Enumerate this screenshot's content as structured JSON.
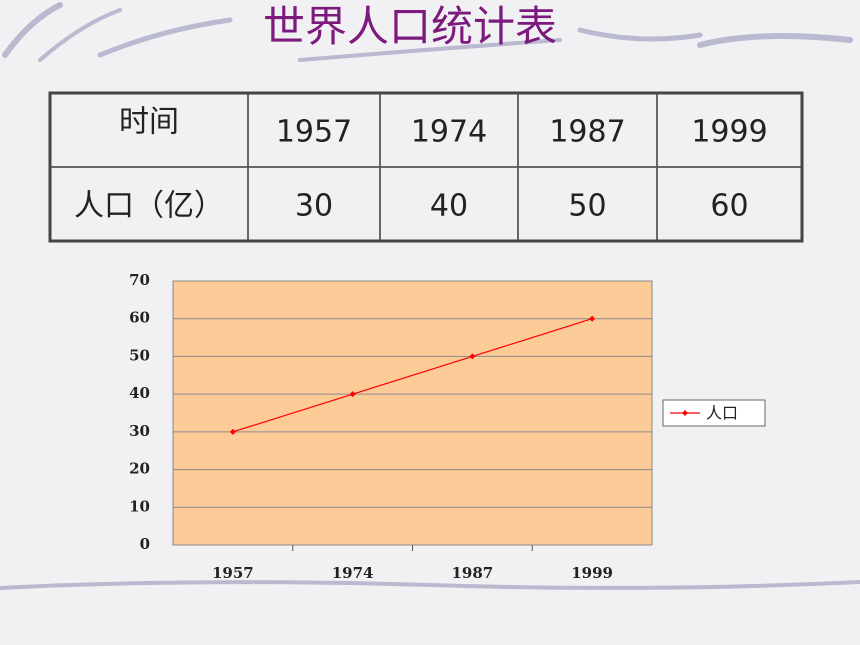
{
  "title": "世界人口统计表",
  "table": {
    "rows": [
      [
        "时间",
        "1957",
        "1974",
        "1987",
        "1999"
      ],
      [
        "人口（亿）",
        "30",
        "40",
        "50",
        "60"
      ]
    ]
  },
  "chart_data": {
    "type": "line",
    "categories": [
      "1957",
      "1974",
      "1987",
      "1999"
    ],
    "series": [
      {
        "name": "人口",
        "color": "#ff0000",
        "values": [
          30,
          40,
          50,
          60
        ]
      }
    ],
    "ylim": [
      0,
      70
    ],
    "yticks": [
      0,
      10,
      20,
      30,
      40,
      50,
      60,
      70
    ],
    "grid": true,
    "legend": "right",
    "plot_background": "#fdcb98"
  }
}
